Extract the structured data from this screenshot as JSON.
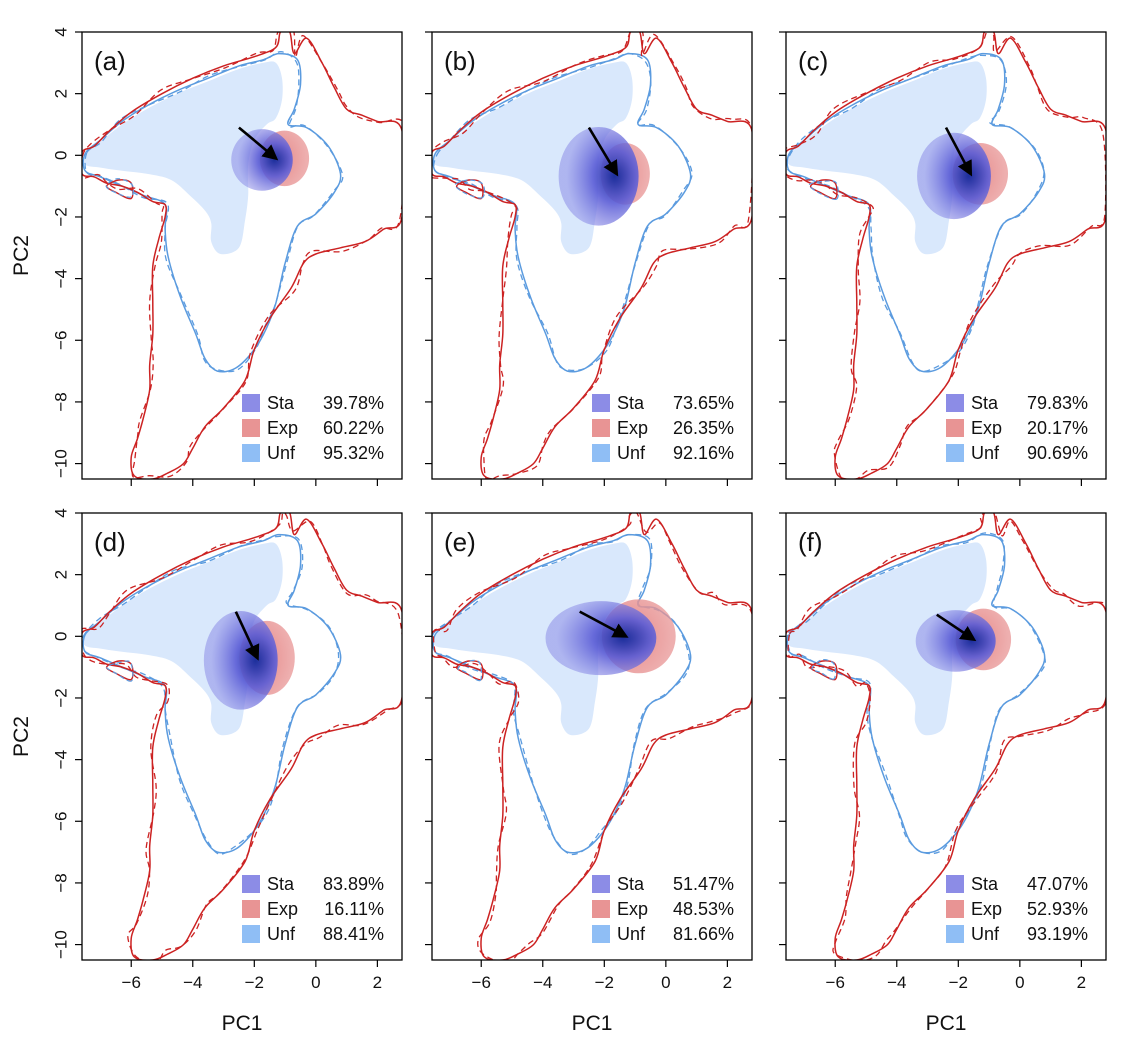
{
  "colors": {
    "sta": "#8c8ce6",
    "exp": "#e89494",
    "unf": "#8fbef5",
    "unf_fill": "#d9e8fc",
    "sta_core": "#1c2f9c",
    "exp_core": "#b01818",
    "outer_line": "#cc2222",
    "inner_line": "#5b9bdf",
    "arrow": "#000000"
  },
  "chart_data": {
    "type": "contour",
    "xlabel": "PC1",
    "ylabel": "PC2",
    "xlim": [
      -7.6,
      2.8
    ],
    "ylim": [
      -10.5,
      4.0
    ],
    "xticks": [
      -6,
      -4,
      -2,
      0,
      2
    ],
    "yticks": [
      4,
      2,
      0,
      -2,
      -4,
      -6,
      -8,
      -10
    ],
    "panels": [
      {
        "label": "(a)",
        "center": [
          -1.3,
          -0.1
        ],
        "arrow_start": [
          -2.5,
          0.9
        ],
        "arrow_end": [
          -1.3,
          -0.1
        ],
        "sta_extent": [
          1.0,
          1.0
        ],
        "exp_extent": [
          0.8,
          0.9
        ],
        "legend": [
          {
            "name": "Sta",
            "value": "39.78%"
          },
          {
            "name": "Exp",
            "value": "60.22%"
          },
          {
            "name": "Unf",
            "value": "95.32%"
          }
        ]
      },
      {
        "label": "(b)",
        "center": [
          -1.6,
          -0.6
        ],
        "arrow_start": [
          -2.5,
          0.9
        ],
        "arrow_end": [
          -1.6,
          -0.6
        ],
        "sta_extent": [
          1.3,
          1.6
        ],
        "exp_extent": [
          0.8,
          1.0
        ],
        "legend": [
          {
            "name": "Sta",
            "value": "73.65%"
          },
          {
            "name": "Exp",
            "value": "26.35%"
          },
          {
            "name": "Unf",
            "value": "92.16%"
          }
        ]
      },
      {
        "label": "(c)",
        "center": [
          -1.6,
          -0.6
        ],
        "arrow_start": [
          -2.4,
          0.9
        ],
        "arrow_end": [
          -1.6,
          -0.6
        ],
        "sta_extent": [
          1.2,
          1.4
        ],
        "exp_extent": [
          0.9,
          1.0
        ],
        "legend": [
          {
            "name": "Sta",
            "value": "79.83%"
          },
          {
            "name": "Exp",
            "value": "20.17%"
          },
          {
            "name": "Unf",
            "value": "90.69%"
          }
        ]
      },
      {
        "label": "(d)",
        "center": [
          -1.9,
          -0.7
        ],
        "arrow_start": [
          -2.6,
          0.8
        ],
        "arrow_end": [
          -1.9,
          -0.7
        ],
        "sta_extent": [
          1.2,
          1.6
        ],
        "exp_extent": [
          0.9,
          1.2
        ],
        "legend": [
          {
            "name": "Sta",
            "value": "83.89%"
          },
          {
            "name": "Exp",
            "value": "16.11%"
          },
          {
            "name": "Unf",
            "value": "88.41%"
          }
        ]
      },
      {
        "label": "(e)",
        "center": [
          -1.3,
          0.0
        ],
        "arrow_start": [
          -2.8,
          0.8
        ],
        "arrow_end": [
          -1.3,
          0.0
        ],
        "sta_extent": [
          1.8,
          1.2
        ],
        "exp_extent": [
          1.2,
          1.2
        ],
        "legend": [
          {
            "name": "Sta",
            "value": "51.47%"
          },
          {
            "name": "Exp",
            "value": "48.53%"
          },
          {
            "name": "Unf",
            "value": "81.66%"
          }
        ]
      },
      {
        "label": "(f)",
        "center": [
          -1.5,
          -0.1
        ],
        "arrow_start": [
          -2.7,
          0.7
        ],
        "arrow_end": [
          -1.5,
          -0.1
        ],
        "sta_extent": [
          1.3,
          1.0
        ],
        "exp_extent": [
          0.9,
          1.0
        ],
        "legend": [
          {
            "name": "Sta",
            "value": "47.07%"
          },
          {
            "name": "Exp",
            "value": "52.93%"
          },
          {
            "name": "Unf",
            "value": "93.19%"
          }
        ]
      }
    ],
    "shapes": {
      "outer": [
        [
          -7.6,
          0.1
        ],
        [
          -7.2,
          0.3
        ],
        [
          -6.7,
          0.8
        ],
        [
          -6.0,
          1.4
        ],
        [
          -5.0,
          2.0
        ],
        [
          -4.0,
          2.5
        ],
        [
          -3.0,
          2.9
        ],
        [
          -2.0,
          3.2
        ],
        [
          -1.3,
          3.5
        ],
        [
          -1.15,
          4.0
        ],
        [
          -0.85,
          4.0
        ],
        [
          -0.7,
          3.3
        ],
        [
          -0.3,
          3.8
        ],
        [
          0.2,
          3.0
        ],
        [
          0.6,
          2.2
        ],
        [
          1.0,
          1.5
        ],
        [
          1.5,
          1.3
        ],
        [
          2.0,
          1.1
        ],
        [
          2.8,
          0.8
        ],
        [
          2.8,
          -2.0
        ],
        [
          2.2,
          -2.4
        ],
        [
          1.6,
          -2.8
        ],
        [
          0.8,
          -3.0
        ],
        [
          0.0,
          -3.2
        ],
        [
          -0.4,
          -3.5
        ],
        [
          -0.8,
          -4.3
        ],
        [
          -1.5,
          -5.3
        ],
        [
          -2.0,
          -6.3
        ],
        [
          -2.3,
          -7.3
        ],
        [
          -3.0,
          -8.2
        ],
        [
          -3.6,
          -8.8
        ],
        [
          -4.0,
          -9.5
        ],
        [
          -4.3,
          -10.0
        ],
        [
          -4.8,
          -10.3
        ],
        [
          -5.3,
          -10.5
        ],
        [
          -5.9,
          -10.4
        ],
        [
          -6.0,
          -9.8
        ],
        [
          -5.8,
          -9.2
        ],
        [
          -5.6,
          -8.5
        ],
        [
          -5.4,
          -7.6
        ],
        [
          -5.4,
          -6.8
        ],
        [
          -5.3,
          -5.8
        ],
        [
          -5.3,
          -4.8
        ],
        [
          -5.3,
          -3.6
        ],
        [
          -5.1,
          -2.7
        ],
        [
          -4.9,
          -2.0
        ],
        [
          -4.9,
          -1.6
        ],
        [
          -5.3,
          -1.5
        ],
        [
          -5.8,
          -1.2
        ],
        [
          -6.3,
          -1.0
        ],
        [
          -6.8,
          -0.9
        ],
        [
          -7.2,
          -0.7
        ],
        [
          -7.6,
          -0.6
        ]
      ],
      "mid": [
        [
          -7.5,
          0.05
        ],
        [
          -7.0,
          0.5
        ],
        [
          -6.3,
          1.1
        ],
        [
          -5.5,
          1.6
        ],
        [
          -4.5,
          2.1
        ],
        [
          -3.5,
          2.5
        ],
        [
          -2.5,
          2.9
        ],
        [
          -1.7,
          3.1
        ],
        [
          -1.2,
          3.3
        ],
        [
          -0.6,
          3.1
        ],
        [
          -0.5,
          2.3
        ],
        [
          -0.7,
          1.5
        ],
        [
          -0.9,
          1.0
        ],
        [
          -0.3,
          0.9
        ],
        [
          0.4,
          0.3
        ],
        [
          0.8,
          -0.6
        ],
        [
          0.6,
          -1.2
        ],
        [
          0.0,
          -1.9
        ],
        [
          -0.6,
          -2.3
        ],
        [
          -1.0,
          -3.5
        ],
        [
          -1.3,
          -4.8
        ],
        [
          -1.6,
          -5.6
        ],
        [
          -2.0,
          -6.3
        ],
        [
          -2.6,
          -6.9
        ],
        [
          -3.2,
          -7.0
        ],
        [
          -3.6,
          -6.6
        ],
        [
          -3.9,
          -5.8
        ],
        [
          -4.4,
          -4.6
        ],
        [
          -4.8,
          -3.3
        ],
        [
          -4.9,
          -2.4
        ],
        [
          -4.9,
          -1.6
        ],
        [
          -5.6,
          -1.3
        ],
        [
          -6.3,
          -1.0
        ],
        [
          -7.0,
          -0.7
        ],
        [
          -7.5,
          -0.5
        ]
      ],
      "core": [
        [
          -7.5,
          0.05
        ],
        [
          -7.0,
          0.45
        ],
        [
          -6.3,
          1.0
        ],
        [
          -5.5,
          1.5
        ],
        [
          -4.5,
          2.0
        ],
        [
          -3.5,
          2.4
        ],
        [
          -2.5,
          2.8
        ],
        [
          -1.7,
          3.0
        ],
        [
          -1.3,
          3.0
        ],
        [
          -1.1,
          2.5
        ],
        [
          -1.1,
          1.8
        ],
        [
          -1.3,
          1.2
        ],
        [
          -1.6,
          1.0
        ],
        [
          -2.0,
          0.5
        ],
        [
          -2.2,
          -0.3
        ],
        [
          -2.2,
          -1.3
        ],
        [
          -2.3,
          -2.1
        ],
        [
          -2.5,
          -3.0
        ],
        [
          -3.1,
          -3.2
        ],
        [
          -3.4,
          -2.8
        ],
        [
          -3.4,
          -2.2
        ],
        [
          -3.6,
          -1.8
        ],
        [
          -4.1,
          -1.3
        ],
        [
          -4.7,
          -0.8
        ],
        [
          -5.5,
          -0.6
        ],
        [
          -6.3,
          -0.5
        ],
        [
          -7.0,
          -0.4
        ],
        [
          -7.5,
          -0.3
        ]
      ],
      "hook": [
        [
          -6.0,
          -1.4
        ],
        [
          -6.5,
          -1.2
        ],
        [
          -6.8,
          -1.0
        ],
        [
          -6.4,
          -0.8
        ],
        [
          -6.0,
          -0.9
        ]
      ]
    }
  }
}
